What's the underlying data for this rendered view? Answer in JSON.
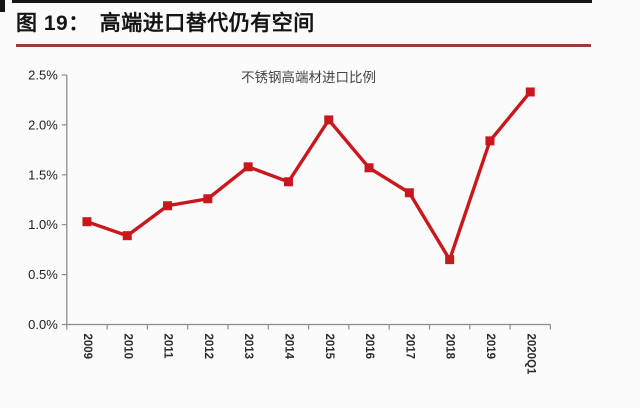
{
  "header": {
    "figure_label": "图 19：",
    "title": "高端进口替代仍有空间",
    "rule_color": "#9c3a38"
  },
  "chart_data": {
    "type": "line",
    "title": "不锈钢高端材进口比例",
    "categories": [
      "2009",
      "2010",
      "2011",
      "2012",
      "2013",
      "2014",
      "2015",
      "2016",
      "2017",
      "2018",
      "2019",
      "2020Q1"
    ],
    "series": [
      {
        "name": "不锈钢高端材进口比例",
        "values": [
          1.03,
          0.89,
          1.19,
          1.26,
          1.58,
          1.43,
          2.05,
          1.57,
          1.32,
          0.65,
          1.84,
          2.33
        ]
      }
    ],
    "unit": "%",
    "ylim": [
      0,
      2.5
    ],
    "ytick_labels": [
      "0.0%",
      "0.5%",
      "1.0%",
      "1.5%",
      "2.0%",
      "2.5%"
    ],
    "ytick_values": [
      0,
      0.5,
      1.0,
      1.5,
      2.0,
      2.5
    ],
    "xlabel": "",
    "ylabel": "",
    "grid": false,
    "legend_position": "none",
    "x_label_rotation_deg": 90,
    "marker": "square",
    "line_color": "#c9171e",
    "axis_color": "#8c8c8c",
    "label_color": "#2a2a2a"
  }
}
